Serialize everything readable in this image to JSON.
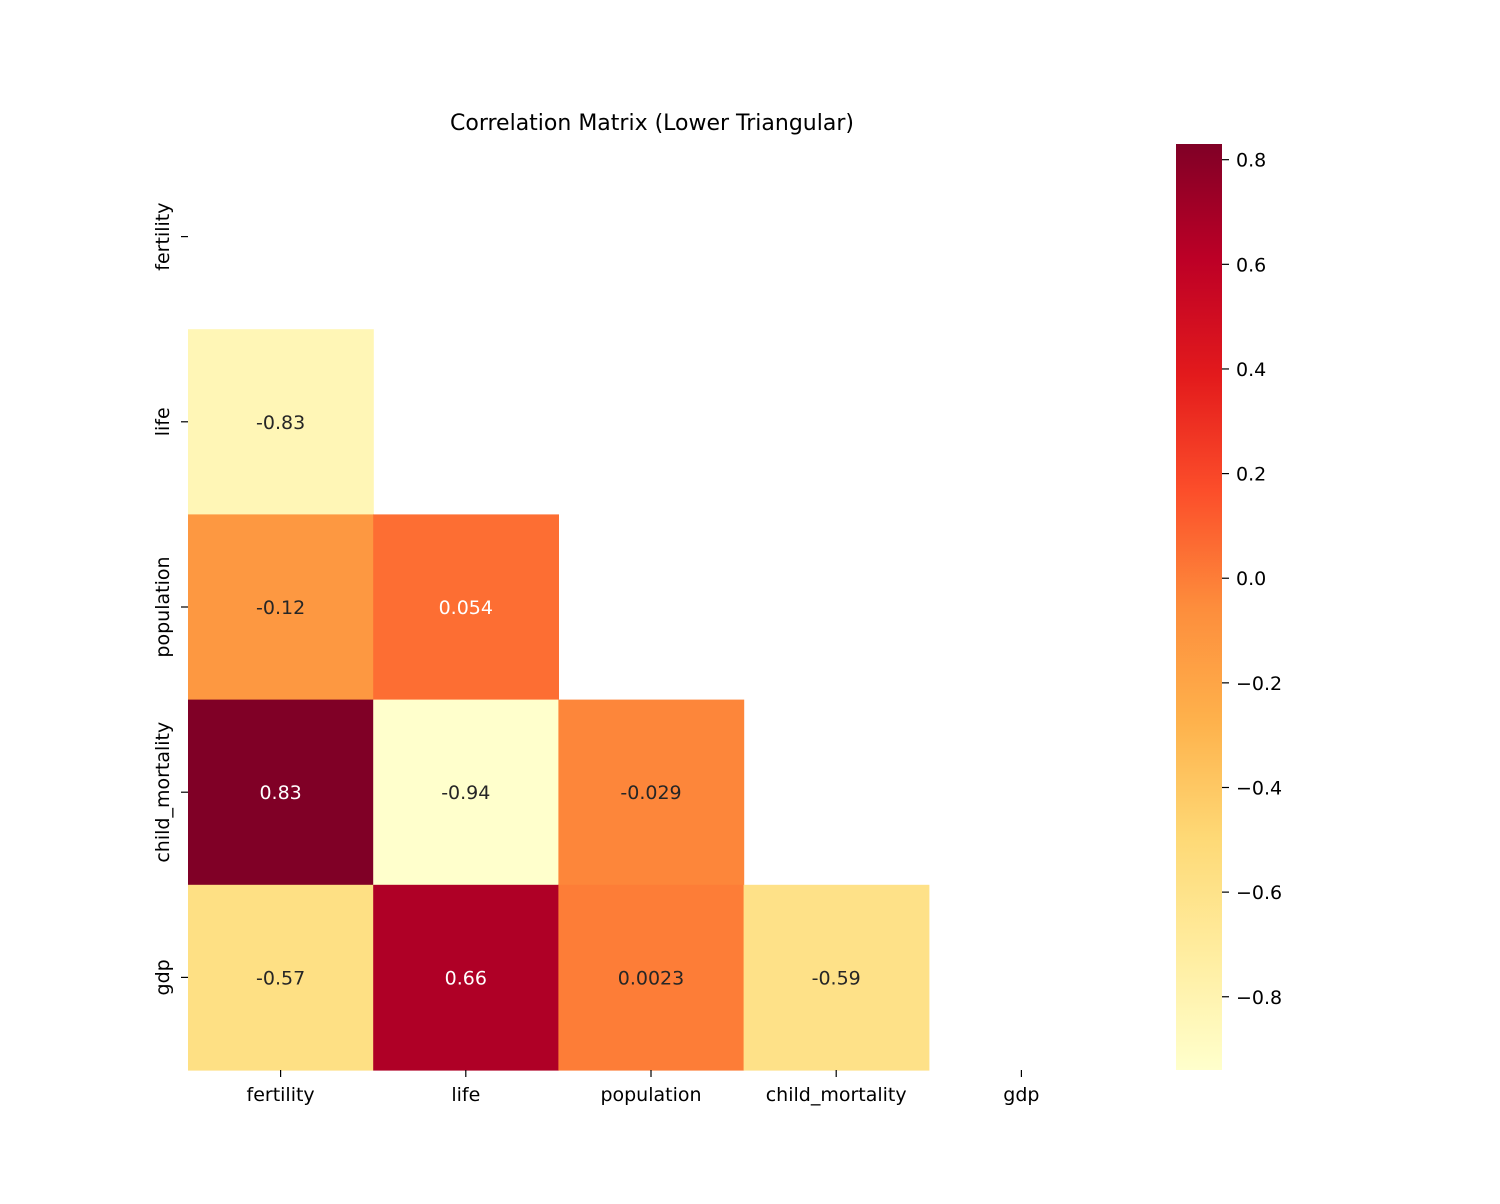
{
  "chart_data": {
    "type": "heatmap",
    "title": "Correlation Matrix (Lower Triangular)",
    "xlabel": "",
    "ylabel": "",
    "variables": [
      "fertility",
      "life",
      "population",
      "child_mortality",
      "gdp"
    ],
    "mask": "upper-triangle-including-diagonal",
    "cells": [
      {
        "row": "life",
        "col": "fertility",
        "value": -0.83,
        "label": "-0.83"
      },
      {
        "row": "population",
        "col": "fertility",
        "value": -0.12,
        "label": "-0.12"
      },
      {
        "row": "population",
        "col": "life",
        "value": 0.054,
        "label": "0.054"
      },
      {
        "row": "child_mortality",
        "col": "fertility",
        "value": 0.83,
        "label": "0.83"
      },
      {
        "row": "child_mortality",
        "col": "life",
        "value": -0.94,
        "label": "-0.94"
      },
      {
        "row": "child_mortality",
        "col": "population",
        "value": -0.029,
        "label": "-0.029"
      },
      {
        "row": "gdp",
        "col": "fertility",
        "value": -0.57,
        "label": "-0.57"
      },
      {
        "row": "gdp",
        "col": "life",
        "value": 0.66,
        "label": "0.66"
      },
      {
        "row": "gdp",
        "col": "population",
        "value": 0.0023,
        "label": "0.0023"
      },
      {
        "row": "gdp",
        "col": "child_mortality",
        "value": -0.59,
        "label": "-0.59"
      }
    ],
    "colormap": "YlOrRd",
    "colorbar": {
      "range": [
        -0.94,
        0.83
      ],
      "ticks": [
        -0.8,
        -0.6,
        -0.4,
        -0.2,
        0.0,
        0.2,
        0.4,
        0.6,
        0.8
      ],
      "tick_labels": [
        "−0.8",
        "−0.6",
        "−0.4",
        "−0.2",
        "0.0",
        "0.2",
        "0.4",
        "0.6",
        "0.8"
      ],
      "placement": "right"
    },
    "grid": false
  }
}
